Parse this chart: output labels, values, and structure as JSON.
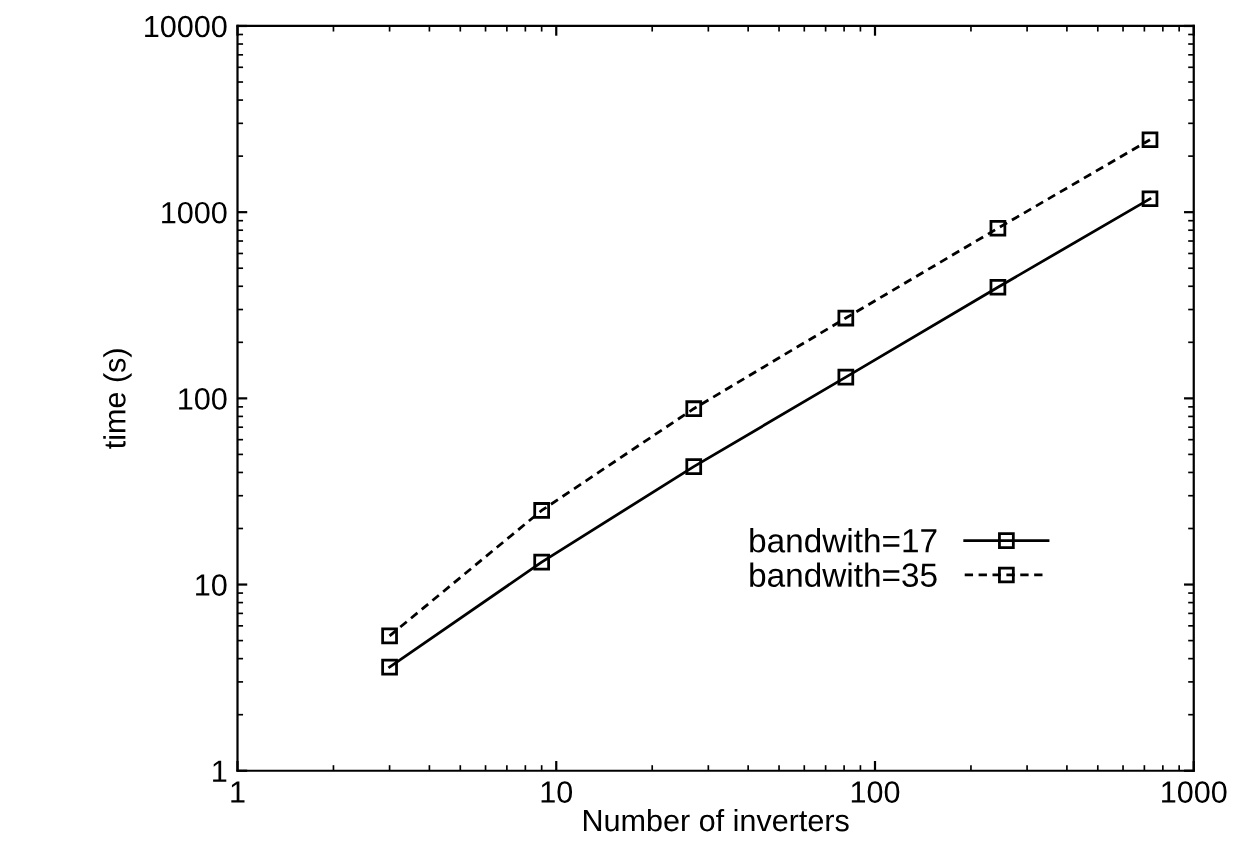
{
  "chart_data": {
    "type": "line",
    "xlabel": "Number of inverters",
    "ylabel": "time (s)",
    "x": [
      3,
      9,
      27,
      81,
      243,
      729
    ],
    "series": [
      {
        "name": "bandwith=17",
        "color": "#000000",
        "line_style": "solid",
        "values": [
          3.6,
          13.2,
          43,
          130,
          395,
          1180
        ]
      },
      {
        "name": "bandwith=35",
        "color": "#000000",
        "line_style": "dashed",
        "values": [
          5.3,
          25,
          88,
          270,
          820,
          2450
        ]
      }
    ],
    "log": "xy",
    "xlim": [
      1,
      1000
    ],
    "ylim": [
      1,
      10000
    ],
    "xticks": [
      1,
      10,
      100,
      1000
    ],
    "yticks": [
      1,
      10,
      100,
      1000,
      10000
    ],
    "marker": "square",
    "legend": "bottom right",
    "grid": false
  }
}
